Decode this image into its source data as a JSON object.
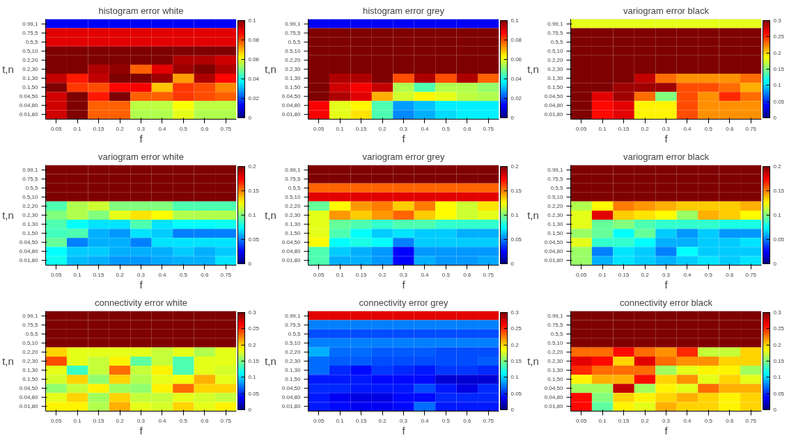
{
  "chart_data": [
    {
      "type": "heatmap",
      "title": "histogram error white",
      "xlabel": "f",
      "ylabel": "t,n",
      "categories": [
        "0.05",
        "0.1",
        "0.15",
        "0.2",
        "0.3",
        "0.4",
        "0.5",
        "0.6",
        "0.75"
      ],
      "y_categories": [
        "0.99,1",
        "0.75,5",
        "0.5,5",
        "0.5,10",
        "0.2,20",
        "0.2,30",
        "0.1,30",
        "0.1,50",
        "0.04,50",
        "0.04,80",
        "0.01,80"
      ],
      "cells": [
        [
          0.012,
          0.012,
          0.012,
          0.012,
          0.012,
          0.012,
          0.012,
          0.012,
          0.012
        ],
        [
          0.09,
          0.09,
          0.09,
          0.09,
          0.09,
          0.09,
          0.09,
          0.09,
          0.09
        ],
        [
          0.09,
          0.09,
          0.09,
          0.09,
          0.09,
          0.09,
          0.09,
          0.09,
          0.09
        ],
        [
          0.1,
          0.1,
          0.1,
          0.1,
          0.1,
          0.1,
          0.1,
          0.1,
          0.1
        ],
        [
          0.1,
          0.1,
          0.1,
          0.1,
          0.1,
          0.1,
          0.095,
          0.095,
          0.092
        ],
        [
          0.1,
          0.1,
          0.095,
          0.098,
          0.078,
          0.09,
          0.097,
          0.1,
          0.095
        ],
        [
          0.093,
          0.085,
          0.093,
          0.1,
          0.1,
          0.097,
          0.072,
          0.095,
          0.087
        ],
        [
          0.1,
          0.082,
          0.08,
          0.087,
          0.088,
          0.068,
          0.082,
          0.08,
          0.074
        ],
        [
          0.092,
          0.1,
          0.085,
          0.1,
          0.078,
          0.078,
          0.082,
          0.08,
          0.078
        ],
        [
          0.092,
          0.1,
          0.078,
          0.078,
          0.056,
          0.056,
          0.062,
          0.056,
          0.056
        ],
        [
          0.092,
          0.1,
          0.078,
          0.078,
          0.055,
          0.055,
          0.06,
          0.055,
          0.055
        ]
      ],
      "clim": [
        0,
        0.1
      ],
      "cticks": [
        0,
        0.02,
        0.04,
        0.06,
        0.08,
        0.1
      ]
    },
    {
      "type": "heatmap",
      "title": "histogram error grey",
      "xlabel": "f",
      "ylabel": "t,n",
      "categories": [
        "0.05",
        "0.1",
        "0.15",
        "0.2",
        "0.3",
        "0.4",
        "0.5",
        "0.6",
        "0.75"
      ],
      "y_categories": [
        "0.99,1",
        "0.75,5",
        "0.5,5",
        "0.5,10",
        "0.2,20",
        "0.2,30",
        "0.1,30",
        "0.1,50",
        "0.04,50",
        "0.04,80",
        "0.01,80"
      ],
      "cells": [
        [
          0.012,
          0.012,
          0.012,
          0.012,
          0.012,
          0.012,
          0.012,
          0.012,
          0.012
        ],
        [
          0.1,
          0.1,
          0.1,
          0.1,
          0.1,
          0.1,
          0.1,
          0.1,
          0.1
        ],
        [
          0.1,
          0.1,
          0.1,
          0.1,
          0.1,
          0.1,
          0.1,
          0.1,
          0.1
        ],
        [
          0.1,
          0.1,
          0.1,
          0.1,
          0.1,
          0.1,
          0.1,
          0.1,
          0.1
        ],
        [
          0.1,
          0.1,
          0.1,
          0.1,
          0.1,
          0.1,
          0.1,
          0.1,
          0.1
        ],
        [
          0.1,
          0.1,
          0.1,
          0.1,
          0.1,
          0.1,
          0.1,
          0.1,
          0.1
        ],
        [
          0.1,
          0.095,
          0.095,
          0.1,
          0.08,
          0.095,
          0.08,
          0.095,
          0.078
        ],
        [
          0.1,
          0.092,
          0.088,
          0.093,
          0.055,
          0.045,
          0.055,
          0.055,
          0.052
        ],
        [
          0.1,
          0.095,
          0.09,
          0.07,
          0.058,
          0.063,
          0.06,
          0.056,
          0.055
        ],
        [
          0.088,
          0.06,
          0.063,
          0.045,
          0.028,
          0.032,
          0.036,
          0.036,
          0.036
        ],
        [
          0.088,
          0.06,
          0.065,
          0.045,
          0.026,
          0.03,
          0.034,
          0.036,
          0.036
        ]
      ],
      "clim": [
        0,
        0.1
      ],
      "cticks": [
        0,
        0.02,
        0.04,
        0.06,
        0.08,
        0.1
      ]
    },
    {
      "type": "heatmap",
      "title": "variogram error black",
      "xlabel": "f",
      "ylabel": "t,n",
      "categories": [
        "0.05",
        "0.1",
        "0.15",
        "0.2",
        "0.3",
        "0.4",
        "0.5",
        "0.6",
        "0.75"
      ],
      "y_categories": [
        "0.99,1",
        "0.75,5",
        "0.5,5",
        "0.5,10",
        "0.2,20",
        "0.2,30",
        "0.1,30",
        "0.1,50",
        "0.04,50",
        "0.04,80",
        "0.01,80"
      ],
      "cells": [
        [
          0.18,
          0.18,
          0.18,
          0.18,
          0.18,
          0.18,
          0.18,
          0.18,
          0.18
        ],
        [
          0.3,
          0.3,
          0.3,
          0.3,
          0.3,
          0.3,
          0.3,
          0.3,
          0.3
        ],
        [
          0.3,
          0.3,
          0.3,
          0.3,
          0.3,
          0.3,
          0.3,
          0.3,
          0.3
        ],
        [
          0.3,
          0.3,
          0.3,
          0.3,
          0.3,
          0.3,
          0.3,
          0.3,
          0.3
        ],
        [
          0.3,
          0.3,
          0.3,
          0.3,
          0.3,
          0.3,
          0.3,
          0.3,
          0.3
        ],
        [
          0.3,
          0.3,
          0.3,
          0.3,
          0.3,
          0.3,
          0.3,
          0.3,
          0.3
        ],
        [
          0.3,
          0.3,
          0.3,
          0.28,
          0.23,
          0.22,
          0.22,
          0.22,
          0.23
        ],
        [
          0.3,
          0.3,
          0.29,
          0.29,
          0.29,
          0.24,
          0.24,
          0.23,
          0.21
        ],
        [
          0.3,
          0.27,
          0.29,
          0.23,
          0.15,
          0.24,
          0.22,
          0.25,
          0.23
        ],
        [
          0.3,
          0.26,
          0.27,
          0.19,
          0.19,
          0.24,
          0.22,
          0.22,
          0.22
        ],
        [
          0.3,
          0.26,
          0.27,
          0.19,
          0.19,
          0.24,
          0.22,
          0.22,
          0.22
        ]
      ],
      "clim": [
        0,
        0.3
      ],
      "cticks": [
        0,
        0.05,
        0.1,
        0.15,
        0.2,
        0.25,
        0.3
      ]
    },
    {
      "type": "heatmap",
      "title": "variogram error white",
      "xlabel": "f",
      "ylabel": "t,n",
      "categories": [
        "0.05",
        "0.1",
        "0.15",
        "0.2",
        "0.3",
        "0.4",
        "0.5",
        "0.6",
        "0.75"
      ],
      "y_categories": [
        "0.99,1",
        "0.75,5",
        "0.5,5",
        "0.5,10",
        "0.2,20",
        "0.2,30",
        "0.1,30",
        "0.1,50",
        "0.04,50",
        "0.04,80",
        "0.01,80"
      ],
      "cells": [
        [
          0.2,
          0.2,
          0.2,
          0.2,
          0.2,
          0.2,
          0.2,
          0.2,
          0.2
        ],
        [
          0.2,
          0.2,
          0.2,
          0.2,
          0.2,
          0.2,
          0.2,
          0.2,
          0.2
        ],
        [
          0.2,
          0.2,
          0.2,
          0.2,
          0.2,
          0.2,
          0.2,
          0.2,
          0.2
        ],
        [
          0.2,
          0.2,
          0.2,
          0.2,
          0.2,
          0.2,
          0.2,
          0.2,
          0.2
        ],
        [
          0.09,
          0.11,
          0.115,
          0.1,
          0.1,
          0.1,
          0.09,
          0.09,
          0.09
        ],
        [
          0.1,
          0.11,
          0.1,
          0.12,
          0.13,
          0.125,
          0.11,
          0.11,
          0.11
        ],
        [
          0.09,
          0.075,
          0.07,
          0.07,
          0.09,
          0.07,
          0.075,
          0.075,
          0.078
        ],
        [
          0.088,
          0.09,
          0.06,
          0.055,
          0.07,
          0.065,
          0.05,
          0.05,
          0.05
        ],
        [
          0.095,
          0.05,
          0.06,
          0.06,
          0.05,
          0.07,
          0.07,
          0.07,
          0.07
        ],
        [
          0.075,
          0.065,
          0.065,
          0.06,
          0.06,
          0.06,
          0.065,
          0.06,
          0.065
        ],
        [
          0.078,
          0.062,
          0.06,
          0.055,
          0.055,
          0.058,
          0.06,
          0.06,
          0.07
        ]
      ],
      "clim": [
        0,
        0.2
      ],
      "cticks": [
        0,
        0.05,
        0.1,
        0.15,
        0.2
      ]
    },
    {
      "type": "heatmap",
      "title": "variogram error grey",
      "xlabel": "f",
      "ylabel": "t,n",
      "categories": [
        "0.05",
        "0.1",
        "0.15",
        "0.2",
        "0.3",
        "0.4",
        "0.5",
        "0.6",
        "0.75"
      ],
      "y_categories": [
        "0.99,1",
        "0.75,5",
        "0.5,5",
        "0.5,10",
        "0.2,20",
        "0.2,30",
        "0.1,30",
        "0.1,50",
        "0.04,50",
        "0.04,80",
        "0.01,80"
      ],
      "cells": [
        [
          0.2,
          0.2,
          0.2,
          0.2,
          0.2,
          0.2,
          0.2,
          0.2,
          0.2
        ],
        [
          0.2,
          0.2,
          0.2,
          0.2,
          0.2,
          0.2,
          0.2,
          0.2,
          0.2
        ],
        [
          0.155,
          0.155,
          0.155,
          0.155,
          0.155,
          0.155,
          0.155,
          0.155,
          0.155
        ],
        [
          0.18,
          0.18,
          0.18,
          0.18,
          0.18,
          0.18,
          0.18,
          0.18,
          0.18
        ],
        [
          0.095,
          0.125,
          0.145,
          0.15,
          0.135,
          0.15,
          0.125,
          0.115,
          0.13
        ],
        [
          0.12,
          0.145,
          0.135,
          0.145,
          0.155,
          0.135,
          0.125,
          0.115,
          0.12
        ],
        [
          0.12,
          0.095,
          0.09,
          0.085,
          0.09,
          0.09,
          0.085,
          0.085,
          0.085
        ],
        [
          0.12,
          0.09,
          0.075,
          0.065,
          0.07,
          0.065,
          0.065,
          0.06,
          0.06
        ],
        [
          0.125,
          0.075,
          0.08,
          0.075,
          0.05,
          0.065,
          0.065,
          0.065,
          0.065
        ],
        [
          0.09,
          0.065,
          0.06,
          0.055,
          0.025,
          0.055,
          0.055,
          0.055,
          0.055
        ],
        [
          0.09,
          0.06,
          0.06,
          0.055,
          0.025,
          0.06,
          0.055,
          0.055,
          0.058
        ]
      ],
      "clim": [
        0,
        0.2
      ],
      "cticks": [
        0,
        0.05,
        0.1,
        0.15,
        0.2
      ]
    },
    {
      "type": "heatmap",
      "title": "variogram error black",
      "xlabel": "f",
      "ylabel": "t,n",
      "categories": [
        "0.05",
        "0.1",
        "0.15",
        "0.2",
        "0.3",
        "0.4",
        "0.5",
        "0.6",
        "0.75"
      ],
      "y_categories": [
        "0.99,1",
        "0.75,5",
        "0.5,5",
        "0.5,10",
        "0.2,20",
        "0.2,30",
        "0.1,30",
        "0.1,50",
        "0.04,50",
        "0.04,80",
        "0.01,80"
      ],
      "cells": [
        [
          0.2,
          0.2,
          0.2,
          0.2,
          0.2,
          0.2,
          0.2,
          0.2,
          0.2
        ],
        [
          0.2,
          0.2,
          0.2,
          0.2,
          0.2,
          0.2,
          0.2,
          0.2,
          0.2
        ],
        [
          0.2,
          0.2,
          0.2,
          0.2,
          0.2,
          0.2,
          0.2,
          0.2,
          0.2
        ],
        [
          0.2,
          0.2,
          0.2,
          0.2,
          0.2,
          0.2,
          0.2,
          0.2,
          0.2
        ],
        [
          0.11,
          0.125,
          0.15,
          0.145,
          0.14,
          0.135,
          0.135,
          0.135,
          0.14
        ],
        [
          0.12,
          0.18,
          0.135,
          0.13,
          0.125,
          0.105,
          0.14,
          0.135,
          0.125
        ],
        [
          0.12,
          0.095,
          0.1,
          0.09,
          0.085,
          0.085,
          0.085,
          0.08,
          0.08
        ],
        [
          0.105,
          0.095,
          0.075,
          0.095,
          0.065,
          0.055,
          0.065,
          0.055,
          0.055
        ],
        [
          0.12,
          0.085,
          0.085,
          0.075,
          0.06,
          0.06,
          0.065,
          0.065,
          0.07
        ],
        [
          0.105,
          0.05,
          0.07,
          0.065,
          0.05,
          0.075,
          0.065,
          0.065,
          0.065
        ],
        [
          0.105,
          0.06,
          0.07,
          0.065,
          0.06,
          0.065,
          0.07,
          0.065,
          0.07
        ]
      ],
      "clim": [
        0,
        0.2
      ],
      "cticks": [
        0,
        0.05,
        0.1,
        0.15,
        0.2
      ]
    },
    {
      "type": "heatmap",
      "title": "connectivity error white",
      "xlabel": "f",
      "ylabel": "t,n",
      "categories": [
        "0.05",
        "0.1",
        "0.15",
        "0.2",
        "0.3",
        "0.4",
        "0.5",
        "0.6",
        "0.75"
      ],
      "y_categories": [
        "0.99,1",
        "0.75,5",
        "0.5,5",
        "0.5,10",
        "0.2,20",
        "0.2,30",
        "0.1,30",
        "0.1,50",
        "0.04,50",
        "0.04,80",
        "0.01,80"
      ],
      "cells": [
        [
          0.3,
          0.3,
          0.3,
          0.3,
          0.3,
          0.3,
          0.3,
          0.3,
          0.3
        ],
        [
          0.3,
          0.3,
          0.3,
          0.3,
          0.3,
          0.3,
          0.3,
          0.3,
          0.3
        ],
        [
          0.3,
          0.3,
          0.3,
          0.3,
          0.3,
          0.3,
          0.3,
          0.3,
          0.3
        ],
        [
          0.3,
          0.3,
          0.3,
          0.3,
          0.3,
          0.3,
          0.3,
          0.3,
          0.3
        ],
        [
          0.2,
          0.18,
          0.18,
          0.18,
          0.18,
          0.17,
          0.18,
          0.165,
          0.18
        ],
        [
          0.24,
          0.18,
          0.17,
          0.19,
          0.14,
          0.17,
          0.135,
          0.18,
          0.18
        ],
        [
          0.18,
          0.13,
          0.17,
          0.23,
          0.17,
          0.19,
          0.135,
          0.18,
          0.175
        ],
        [
          0.175,
          0.2,
          0.155,
          0.2,
          0.165,
          0.18,
          0.185,
          0.21,
          0.18
        ],
        [
          0.155,
          0.17,
          0.19,
          0.16,
          0.155,
          0.19,
          0.23,
          0.2,
          0.2
        ],
        [
          0.18,
          0.2,
          0.16,
          0.2,
          0.17,
          0.17,
          0.18,
          0.175,
          0.17
        ],
        [
          0.19,
          0.19,
          0.165,
          0.21,
          0.18,
          0.175,
          0.2,
          0.18,
          0.19
        ]
      ],
      "clim": [
        0,
        0.3
      ],
      "cticks": [
        0,
        0.05,
        0.1,
        0.15,
        0.2,
        0.25,
        0.3
      ]
    },
    {
      "type": "heatmap",
      "title": "connectivity error grey",
      "xlabel": "f",
      "ylabel": "t,n",
      "categories": [
        "0.05",
        "0.1",
        "0.15",
        "0.2",
        "0.3",
        "0.4",
        "0.5",
        "0.6",
        "0.75"
      ],
      "y_categories": [
        "0.99,1",
        "0.75,5",
        "0.5,5",
        "0.5,10",
        "0.2,20",
        "0.2,30",
        "0.1,30",
        "0.1,50",
        "0.04,50",
        "0.04,80",
        "0.01,80"
      ],
      "cells": [
        [
          0.27,
          0.27,
          0.27,
          0.27,
          0.27,
          0.27,
          0.27,
          0.27,
          0.27
        ],
        [
          0.075,
          0.075,
          0.075,
          0.075,
          0.075,
          0.075,
          0.075,
          0.075,
          0.075
        ],
        [
          0.06,
          0.06,
          0.06,
          0.06,
          0.06,
          0.06,
          0.06,
          0.06,
          0.06
        ],
        [
          0.075,
          0.075,
          0.075,
          0.075,
          0.075,
          0.075,
          0.075,
          0.075,
          0.075
        ],
        [
          0.09,
          0.07,
          0.07,
          0.065,
          0.065,
          0.065,
          0.06,
          0.06,
          0.06
        ],
        [
          0.07,
          0.065,
          0.065,
          0.06,
          0.06,
          0.06,
          0.06,
          0.06,
          0.065
        ],
        [
          0.07,
          0.05,
          0.04,
          0.055,
          0.05,
          0.045,
          0.055,
          0.055,
          0.05
        ],
        [
          0.045,
          0.045,
          0.045,
          0.04,
          0.04,
          0.04,
          0.025,
          0.025,
          0.025
        ],
        [
          0.05,
          0.05,
          0.045,
          0.045,
          0.045,
          0.06,
          0.045,
          0.03,
          0.05
        ],
        [
          0.045,
          0.035,
          0.03,
          0.03,
          0.04,
          0.04,
          0.05,
          0.05,
          0.05
        ],
        [
          0.045,
          0.04,
          0.035,
          0.035,
          0.04,
          0.07,
          0.045,
          0.045,
          0.045
        ]
      ],
      "clim": [
        0,
        0.3
      ],
      "cticks": [
        0,
        0.05,
        0.1,
        0.15,
        0.2,
        0.25,
        0.3
      ]
    },
    {
      "type": "heatmap",
      "title": "connectivity error black",
      "xlabel": "f",
      "ylabel": "t,n",
      "categories": [
        "0.05",
        "0.1",
        "0.15",
        "0.2",
        "0.3",
        "0.4",
        "0.5",
        "0.6",
        "0.75"
      ],
      "y_categories": [
        "0.99,1",
        "0.75,5",
        "0.5,5",
        "0.5,10",
        "0.2,20",
        "0.2,30",
        "0.1,30",
        "0.1,50",
        "0.04,50",
        "0.04,80",
        "0.01,80"
      ],
      "cells": [
        [
          0.3,
          0.3,
          0.3,
          0.3,
          0.3,
          0.3,
          0.3,
          0.3,
          0.3
        ],
        [
          0.3,
          0.3,
          0.3,
          0.3,
          0.3,
          0.3,
          0.3,
          0.3,
          0.3
        ],
        [
          0.3,
          0.3,
          0.3,
          0.3,
          0.3,
          0.3,
          0.3,
          0.3,
          0.3
        ],
        [
          0.3,
          0.3,
          0.3,
          0.3,
          0.3,
          0.3,
          0.3,
          0.3,
          0.3
        ],
        [
          0.23,
          0.23,
          0.26,
          0.23,
          0.22,
          0.25,
          0.17,
          0.17,
          0.2
        ],
        [
          0.27,
          0.26,
          0.2,
          0.27,
          0.23,
          0.22,
          0.22,
          0.2,
          0.2
        ],
        [
          0.25,
          0.23,
          0.23,
          0.23,
          0.16,
          0.18,
          0.19,
          0.19,
          0.16
        ],
        [
          0.19,
          0.21,
          0.21,
          0.26,
          0.2,
          0.22,
          0.18,
          0.2,
          0.18
        ],
        [
          0.16,
          0.16,
          0.28,
          0.16,
          0.19,
          0.18,
          0.23,
          0.21,
          0.21
        ],
        [
          0.26,
          0.15,
          0.2,
          0.19,
          0.2,
          0.21,
          0.2,
          0.19,
          0.2
        ],
        [
          0.26,
          0.14,
          0.19,
          0.18,
          0.21,
          0.2,
          0.2,
          0.19,
          0.2
        ]
      ],
      "clim": [
        0,
        0.3
      ],
      "cticks": [
        0,
        0.05,
        0.1,
        0.15,
        0.2,
        0.25,
        0.3
      ]
    }
  ]
}
